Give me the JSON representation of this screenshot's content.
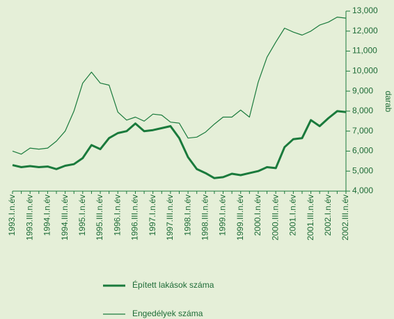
{
  "chart_data": {
    "type": "line",
    "categories": [
      "1993.I.n.év",
      null,
      "1993.III.n.év",
      null,
      "1994.I.n.év",
      null,
      "1994.III.n.év",
      null,
      "1995.I.n.év",
      null,
      "1995.III.n.év",
      null,
      "1996.I.n.év",
      null,
      "1996.III.n.év",
      null,
      "1997.I.n.év",
      null,
      "1997.III.n.év",
      null,
      "1998.I.n.év",
      null,
      "1998.III.n.év",
      null,
      "1999.I.n.év",
      null,
      "1999.III.n.év",
      null,
      "2000.I.n.év",
      null,
      "2000.III.n.év",
      null,
      "2001.I.n.év",
      null,
      "2001.III.n.év",
      null,
      "2002.I.n.év",
      null,
      "2002.III.n.év"
    ],
    "series": [
      {
        "name": "Épített lakások száma",
        "color": "#1a7a3c",
        "width": 3,
        "values": [
          5300,
          5200,
          5250,
          5200,
          5230,
          5100,
          5270,
          5350,
          5650,
          6300,
          6100,
          6650,
          6900,
          7000,
          7380,
          7000,
          7050,
          7150,
          7250,
          6650,
          5700,
          5100,
          4900,
          4650,
          4700,
          4870,
          4800,
          4900,
          5000,
          5200,
          5150,
          6200,
          6600,
          6650,
          7550,
          7250,
          7650,
          8000,
          7950
        ]
      },
      {
        "name": "Engedélyek száma",
        "color": "#1a7a3c",
        "width": 1.2,
        "values": [
          6000,
          5850,
          6150,
          6100,
          6150,
          6500,
          7000,
          8000,
          9400,
          9950,
          9400,
          9300,
          7950,
          7550,
          7700,
          7500,
          7850,
          7800,
          7450,
          7400,
          6650,
          6700,
          6950,
          7350,
          7700,
          7700,
          8050,
          7700,
          9450,
          10700,
          11450,
          12150,
          11950,
          11800,
          12000,
          12300,
          12450,
          12700,
          12650
        ]
      }
    ],
    "y_axis_label": "darab",
    "ylim": [
      4000,
      13000
    ],
    "yticks": [
      {
        "value": 4000,
        "label": "4,000"
      },
      {
        "value": 5000,
        "label": "5,000"
      },
      {
        "value": 6000,
        "label": "6,000"
      },
      {
        "value": 7000,
        "label": "7,000"
      },
      {
        "value": 8000,
        "label": "8,000"
      },
      {
        "value": 9000,
        "label": "9,000"
      },
      {
        "value": 10000,
        "label": "10,000"
      },
      {
        "value": 11000,
        "label": "11,000"
      },
      {
        "value": 12000,
        "label": "12,000"
      },
      {
        "value": 13000,
        "label": "13,000"
      }
    ]
  }
}
